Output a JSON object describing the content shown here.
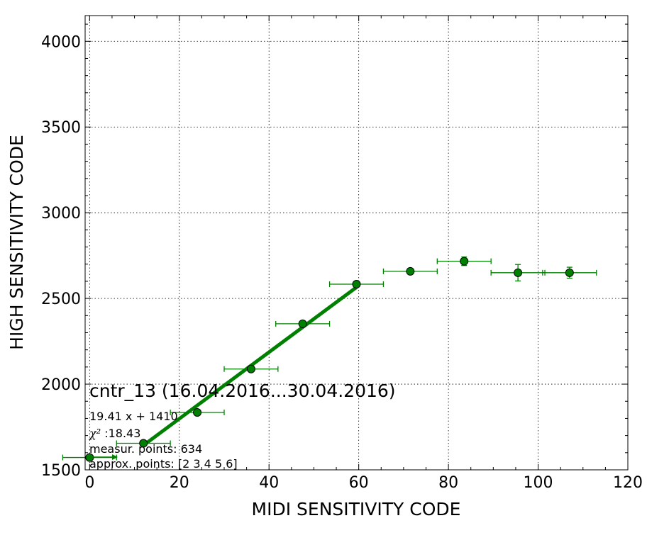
{
  "chart_data": {
    "type": "scatter",
    "xlabel": "MIDI SENSITIVITY CODE",
    "ylabel": "HIGH SENSITIVITY CODE",
    "xlim": [
      -1,
      120
    ],
    "ylim": [
      1500,
      4150
    ],
    "x_ticks": [
      0,
      20,
      40,
      60,
      80,
      100,
      120
    ],
    "y_ticks": [
      1500,
      2000,
      2500,
      3000,
      3500,
      4000
    ],
    "grid": true,
    "points": [
      {
        "x": 0,
        "y": 1572,
        "xerr": 6,
        "yerr": 8
      },
      {
        "x": 12,
        "y": 1655,
        "xerr": 6,
        "yerr": 8
      },
      {
        "x": 24,
        "y": 1835,
        "xerr": 6,
        "yerr": 8
      },
      {
        "x": 36,
        "y": 2088,
        "xerr": 6,
        "yerr": 8
      },
      {
        "x": 47.5,
        "y": 2352,
        "xerr": 6,
        "yerr": 8
      },
      {
        "x": 59.5,
        "y": 2583,
        "xerr": 6,
        "yerr": 8
      },
      {
        "x": 71.5,
        "y": 2658,
        "xerr": 6,
        "yerr": 12
      },
      {
        "x": 83.5,
        "y": 2717,
        "xerr": 6,
        "yerr": 25
      },
      {
        "x": 95.5,
        "y": 2650,
        "xerr": 6,
        "yerr": 48
      },
      {
        "x": 107,
        "y": 2650,
        "xerr": 6,
        "yerr": 32
      }
    ],
    "fit_line": {
      "x": [
        12,
        59.5
      ],
      "y": [
        1643,
        2565
      ]
    },
    "color": "#008000",
    "annotations": {
      "title": "cntr_13 (16.04.2016...30.04.2016)",
      "equation": "19.41 x + 1410",
      "chi_label": "χ²",
      "chi_value": " :18.43",
      "measur": "measur. points: 634",
      "approx": "approx. points: [2 3 4 5 6]"
    }
  }
}
